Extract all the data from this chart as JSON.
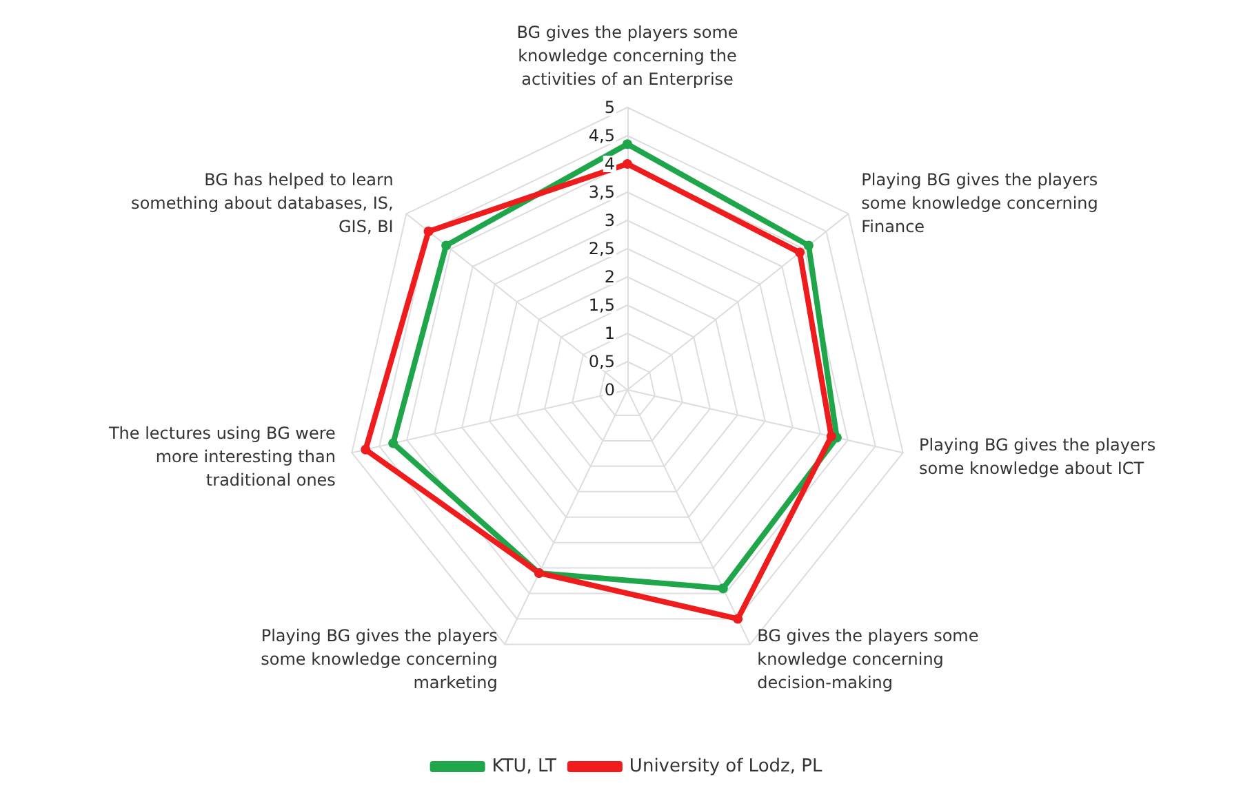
{
  "chart_data": {
    "type": "radar",
    "categories": [
      "BG gives the players some knowledge concerning the activities of an Enterprise",
      "Playing BG gives the players some knowledge concerning Finance",
      "Playing BG gives the players some knowledge about ICT",
      "BG gives the players some knowledge concerning decision-making",
      "Playing BG gives the players some knowledge concerning marketing",
      "The lectures using BG were more interesting than traditional ones",
      "BG has helped to learn something about databases, IS, GIS, BI"
    ],
    "series": [
      {
        "name": "KTU, LT",
        "color": "#1fa64a",
        "values": [
          4.35,
          4.1,
          3.8,
          3.9,
          3.6,
          4.25,
          4.1
        ]
      },
      {
        "name": "University of Lodz, PL",
        "color": "#ee1c1c",
        "values": [
          4.0,
          3.9,
          3.7,
          4.5,
          3.6,
          4.75,
          4.5
        ]
      }
    ],
    "ylim": [
      0,
      5
    ],
    "yticks": [
      0,
      {
        "value": 0.5,
        "label": "0,5"
      },
      1,
      {
        "value": 1.5,
        "label": "1,5"
      },
      2,
      {
        "value": 2.5,
        "label": "2,5"
      },
      3,
      {
        "value": 3.5,
        "label": "3,5"
      },
      4,
      {
        "value": 4.5,
        "label": "4,5"
      },
      5
    ],
    "grid": true,
    "legend": "bottom",
    "marker": "circle",
    "line_style": "solid"
  }
}
